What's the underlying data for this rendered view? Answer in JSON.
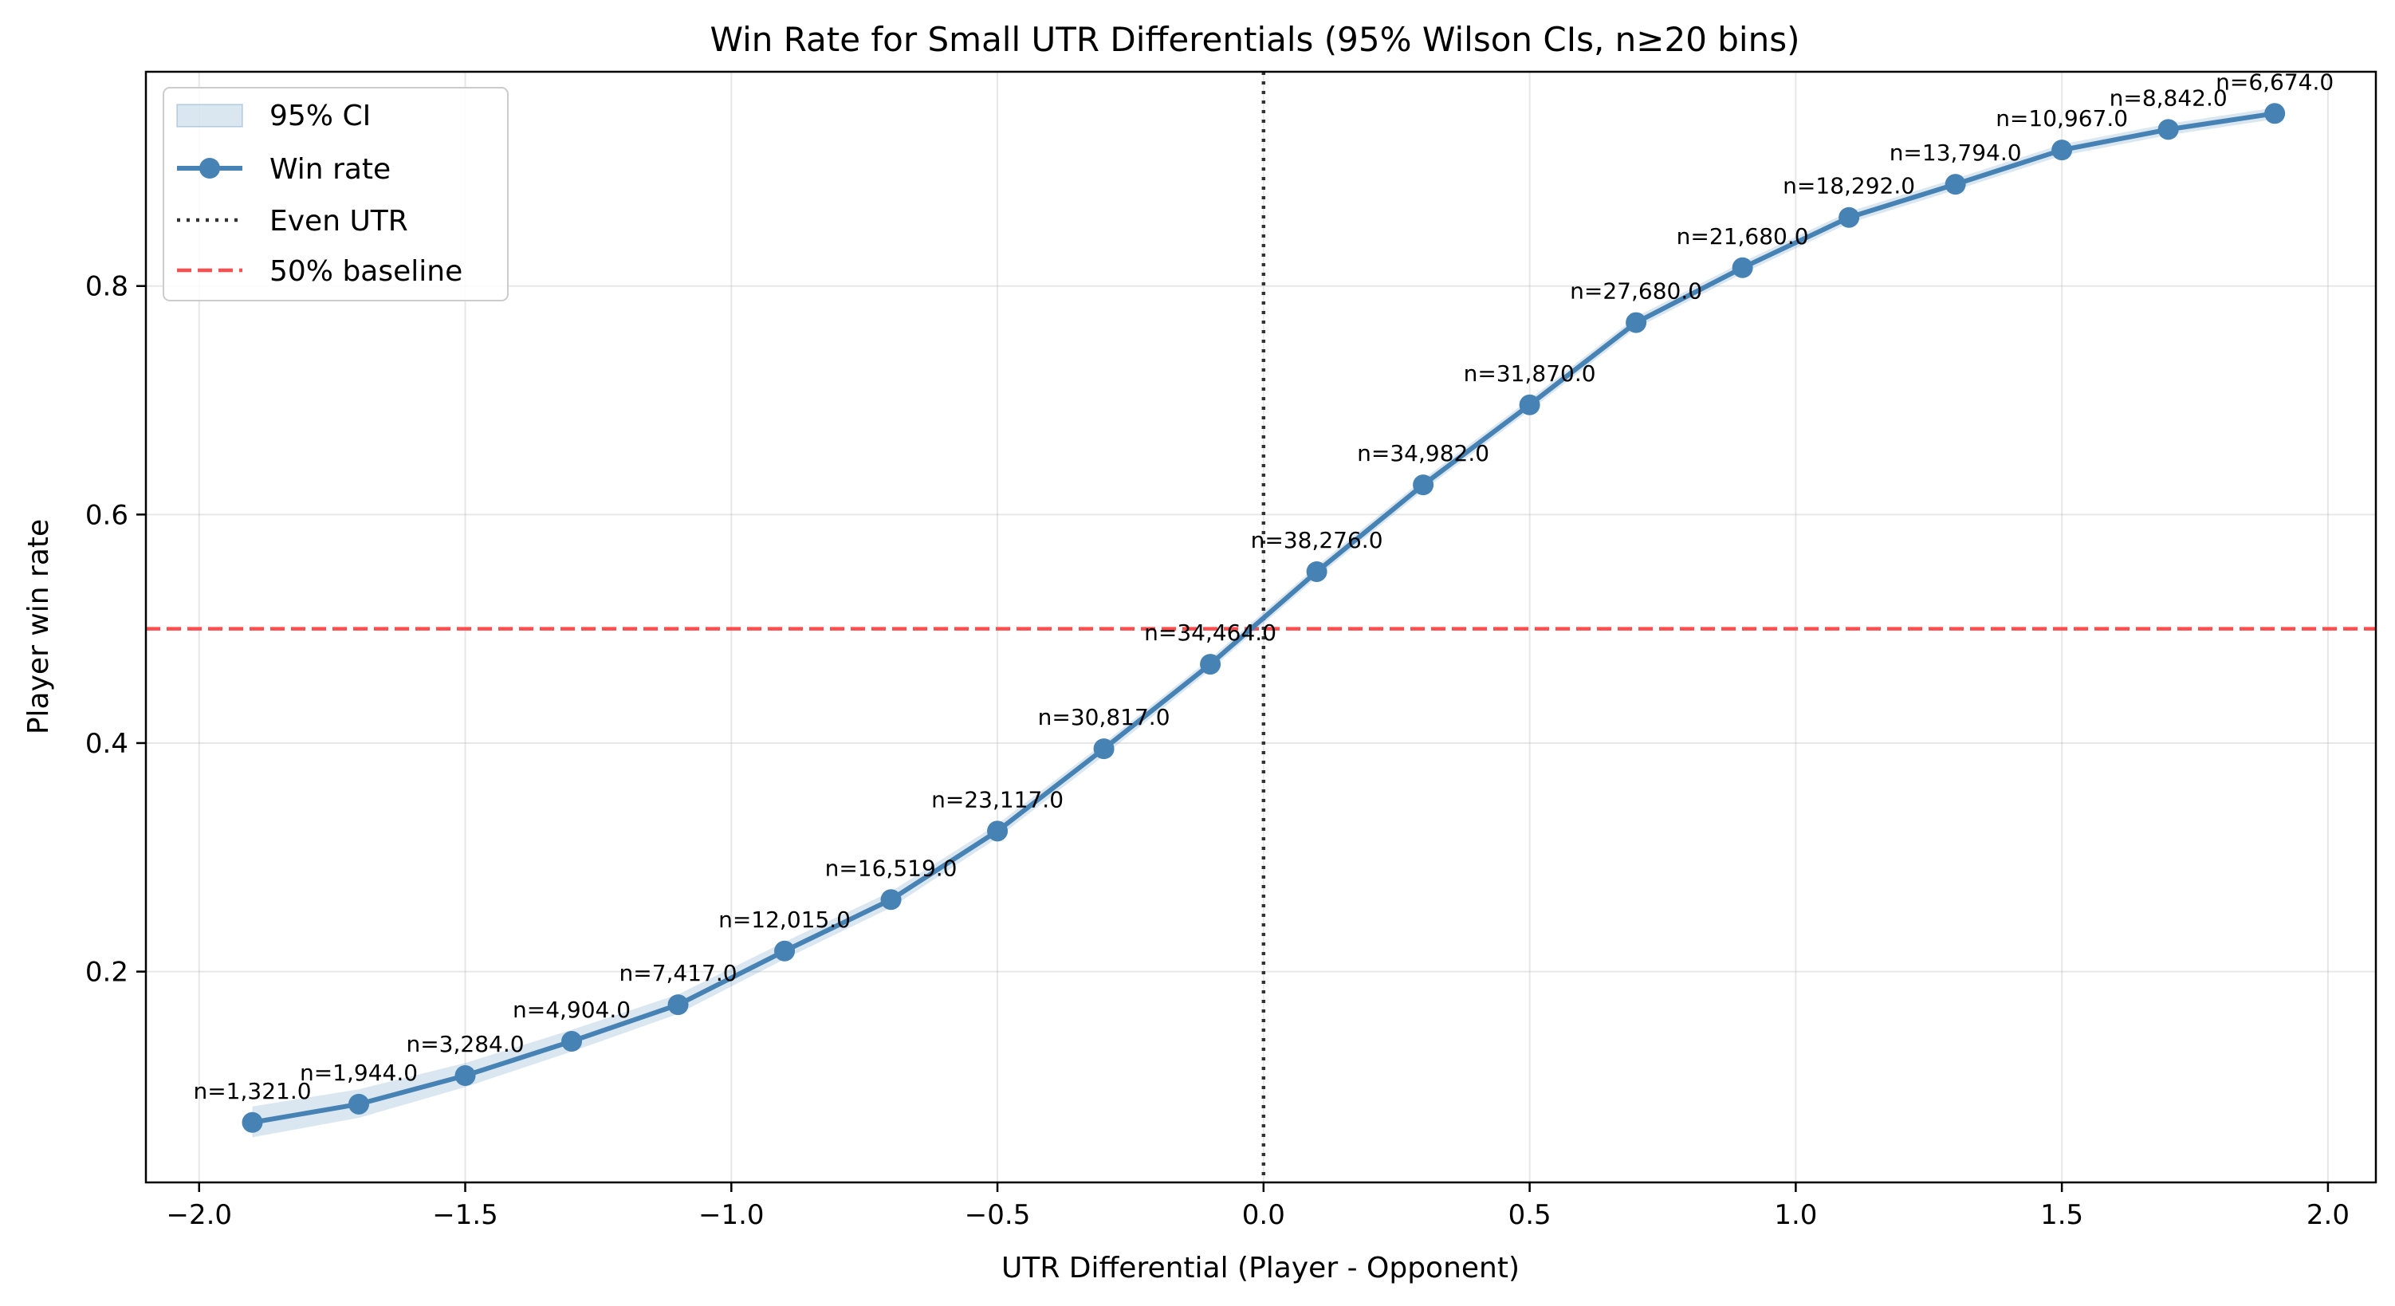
{
  "chart_data": {
    "type": "line",
    "title": "Win Rate for Small UTR Differentials (95% Wilson CIs, n≥20 bins)",
    "xlabel": "UTR Differential (Player - Opponent)",
    "ylabel": "Player win rate",
    "xlim": [
      -2.1,
      2.09
    ],
    "ylim": [
      0.0155,
      0.9875
    ],
    "x_ticks": [
      -2.0,
      -1.5,
      -1.0,
      -0.5,
      0.0,
      0.5,
      1.0,
      1.5,
      2.0
    ],
    "x_tick_labels": [
      "−2.0",
      "−1.5",
      "−1.0",
      "−0.5",
      "0.0",
      "0.5",
      "1.0",
      "1.5",
      "2.0"
    ],
    "y_ticks": [
      0.2,
      0.4,
      0.6,
      0.8
    ],
    "y_tick_labels": [
      "0.2",
      "0.4",
      "0.6",
      "0.8"
    ],
    "grid": true,
    "legend_position": "top-left",
    "series": [
      {
        "name": "Win rate",
        "color": "#4682b4",
        "x": [
          -1.9,
          -1.7,
          -1.5,
          -1.3,
          -1.1,
          -0.9,
          -0.7,
          -0.5,
          -0.3,
          -0.1,
          0.1,
          0.3,
          0.5,
          0.7,
          0.9,
          1.1,
          1.3,
          1.5,
          1.7,
          1.9
        ],
        "y": [
          0.068,
          0.084,
          0.109,
          0.139,
          0.171,
          0.218,
          0.263,
          0.323,
          0.395,
          0.469,
          0.55,
          0.626,
          0.696,
          0.768,
          0.816,
          0.86,
          0.889,
          0.919,
          0.937,
          0.951
        ],
        "ci_low": [
          0.055,
          0.072,
          0.099,
          0.13,
          0.163,
          0.211,
          0.256,
          0.317,
          0.389,
          0.464,
          0.545,
          0.621,
          0.691,
          0.763,
          0.811,
          0.855,
          0.884,
          0.914,
          0.932,
          0.946
        ],
        "ci_high": [
          0.082,
          0.097,
          0.12,
          0.149,
          0.18,
          0.226,
          0.27,
          0.329,
          0.4,
          0.474,
          0.555,
          0.631,
          0.701,
          0.773,
          0.821,
          0.865,
          0.894,
          0.924,
          0.942,
          0.956
        ],
        "labels": [
          "n=1,321.0",
          "n=1,944.0",
          "n=3,284.0",
          "n=4,904.0",
          "n=7,417.0",
          "n=12,015.0",
          "n=16,519.0",
          "n=23,117.0",
          "n=30,817.0",
          "n=34,464.0",
          "n=38,276.0",
          "n=34,982.0",
          "n=31,870.0",
          "n=27,680.0",
          "n=21,680.0",
          "n=18,292.0",
          "n=13,794.0",
          "n=10,967.0",
          "n=8,842.0",
          "n=6,674.0"
        ]
      }
    ],
    "ci_band": {
      "name": "95% CI",
      "color": "#4682b4"
    },
    "reference_lines": [
      {
        "name": "Even UTR",
        "orientation": "vertical",
        "value": 0.0,
        "color": "#333333",
        "style": "dotted"
      },
      {
        "name": "50% baseline",
        "orientation": "horizontal",
        "value": 0.5,
        "color": "#ff4d4d",
        "style": "dashed"
      }
    ],
    "legend": [
      "95% CI",
      "Win rate",
      "Even UTR",
      "50% baseline"
    ]
  }
}
